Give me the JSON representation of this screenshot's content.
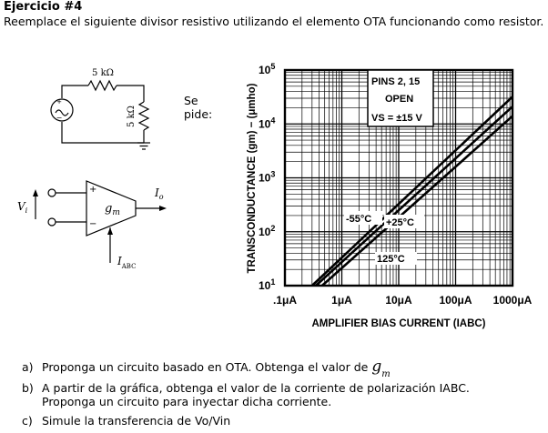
{
  "header": {
    "title": "Ejercicio #4",
    "intro": "Reemplace el siguiente divisor resistivo utilizando el elemento OTA funcionando como resistor."
  },
  "divider": {
    "r_top": "5 kΩ",
    "r_bottom": "5 kΩ"
  },
  "sepide": {
    "line1": "Se",
    "line2": "pide:"
  },
  "ota": {
    "vi": "V",
    "vi_sub": "i",
    "plus": "+",
    "minus": "−",
    "gm": "g",
    "gm_sub": "m",
    "io": "I",
    "io_sub": "o",
    "iabc": "I",
    "iabc_sub": "ABC"
  },
  "graph": {
    "ylabel": "TRANSCONDUCTANCE (gm) − (μmho)",
    "xlabel": "AMPLIFIER BIAS CURRENT (IABC)",
    "y_ticks": [
      {
        "base": "10",
        "exp": "1"
      },
      {
        "base": "10",
        "exp": "2"
      },
      {
        "base": "10",
        "exp": "3"
      },
      {
        "base": "10",
        "exp": "4"
      },
      {
        "base": "10",
        "exp": "5"
      }
    ],
    "x_ticks": [
      ".1μA",
      "1μA",
      "10μA",
      "100μA",
      "1000μA"
    ],
    "box_line1": "PINS 2, 15",
    "box_line2": "OPEN",
    "box_line3": "VS = ±15 V",
    "label_m55": "-55°C",
    "label_p25": "+25°C",
    "label_p125": "125°C"
  },
  "chart_data": {
    "type": "line",
    "title": "",
    "xlabel": "AMPLIFIER BIAS CURRENT (IABC)",
    "ylabel": "TRANSCONDUCTANCE (gm) − (μmho)",
    "x_scale": "log",
    "y_scale": "log",
    "xlim_uA": [
      0.1,
      1000
    ],
    "ylim_umho": [
      10,
      100000
    ],
    "grid": true,
    "series": [
      {
        "name": "-55°C",
        "x_uA": [
          0.3,
          1000
        ],
        "y_umho": [
          10,
          32000
        ]
      },
      {
        "name": "+25°C",
        "x_uA": [
          0.35,
          1000
        ],
        "y_umho": [
          10,
          21000
        ]
      },
      {
        "name": "125°C",
        "x_uA": [
          0.45,
          1000
        ],
        "y_umho": [
          10,
          14000
        ]
      }
    ]
  },
  "questions": [
    {
      "label": "a)",
      "text": "Proponga un circuito basado en OTA. Obtenga el valor de",
      "gm": "g",
      "gm_sub": "m"
    },
    {
      "label": "b)",
      "text": "A partir de la gráfica, obtenga el valor de la corriente de polarización IABC.",
      "text2": "Proponga un circuito para inyectar dicha corriente."
    },
    {
      "label": "c)",
      "text": "Simule la transferencia de Vo/Vin"
    }
  ]
}
